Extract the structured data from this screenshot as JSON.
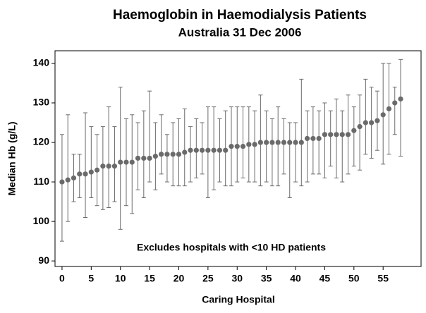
{
  "chart_data": {
    "type": "errorbar",
    "title": "Haemoglobin in Haemodialysis Patients",
    "subtitle": "Australia  31 Dec 2006",
    "x_label": "Caring Hospital",
    "y_label": "Median Hb (g/L)",
    "annotation": "Excludes hospitals with <10 HD patients",
    "x": [
      0,
      1,
      2,
      3,
      4,
      5,
      6,
      7,
      8,
      9,
      10,
      11,
      12,
      13,
      14,
      15,
      16,
      17,
      18,
      19,
      20,
      21,
      22,
      23,
      24,
      25,
      26,
      27,
      28,
      29,
      30,
      31,
      32,
      33,
      34,
      35,
      36,
      37,
      38,
      39,
      40,
      41,
      42,
      43,
      44,
      45,
      46,
      47,
      48,
      49,
      50,
      51,
      52,
      53,
      54,
      55,
      56,
      57,
      58
    ],
    "series": [
      {
        "color": "#6a6a6a",
        "values": [
          110,
          110.5,
          111,
          112,
          112,
          112.5,
          113,
          114,
          114,
          114,
          115,
          115,
          115,
          116,
          116,
          116,
          116.5,
          117,
          117,
          117,
          117,
          117.5,
          118,
          118,
          118,
          118,
          118,
          118,
          118,
          119,
          119,
          119,
          119.5,
          119.5,
          120,
          120,
          120,
          120,
          120,
          120,
          120,
          120,
          121,
          121,
          121,
          122,
          122,
          122,
          122,
          122,
          123,
          124,
          125,
          125,
          125.5,
          127,
          128.5,
          130,
          131
        ],
        "lower": [
          95,
          100,
          105,
          106,
          101,
          106,
          104,
          103,
          103.5,
          105,
          98,
          104,
          102,
          108,
          106,
          110,
          108,
          112,
          110,
          109,
          109,
          109,
          110,
          111,
          112,
          106,
          108,
          110,
          109,
          109,
          110,
          111,
          110,
          110,
          109,
          110,
          109,
          109,
          112,
          106,
          110,
          109,
          110,
          112,
          112,
          111,
          114,
          111,
          110,
          112,
          114,
          113,
          117,
          116,
          118,
          114.5,
          117,
          122,
          116.5
        ],
        "upper": [
          122,
          127,
          117,
          117,
          127.5,
          124,
          122,
          124,
          129,
          124,
          134,
          126,
          127,
          125,
          128,
          133,
          125,
          127,
          122,
          125,
          126,
          128.5,
          124,
          126,
          125,
          129,
          129,
          126,
          128,
          129,
          129,
          129,
          129,
          128,
          132,
          128,
          126,
          129,
          126,
          125,
          125,
          136,
          128,
          129,
          128,
          130,
          128,
          131,
          128,
          132,
          129,
          132,
          136,
          134,
          133,
          140,
          140,
          134,
          141
        ]
      }
    ],
    "xlim": [
      -1.2,
      61.5
    ],
    "xticks": [
      0,
      5,
      10,
      15,
      20,
      25,
      30,
      35,
      40,
      45,
      50,
      55
    ],
    "ylim": [
      88.6,
      143.2
    ],
    "yticks": [
      90,
      100,
      110,
      120,
      130,
      140
    ]
  }
}
